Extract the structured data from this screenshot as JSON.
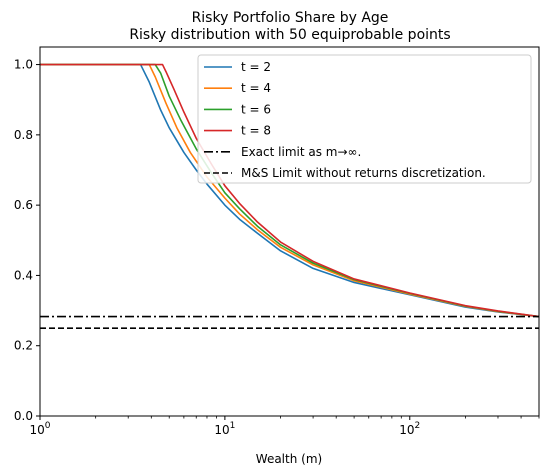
{
  "chart_data": {
    "type": "line",
    "title": "Risky Portfolio Share by Age",
    "subtitle": "Risky distribution with 50 equiprobable points",
    "xlabel": "Wealth (m)",
    "ylabel": "",
    "xscale": "log",
    "xlim": [
      1,
      500
    ],
    "ylim": [
      0,
      1.05
    ],
    "grid": false,
    "legend_position": "top-right",
    "x_ticks": [
      {
        "value": 1,
        "base": "10",
        "exp": "0"
      },
      {
        "value": 10,
        "base": "10",
        "exp": "1"
      },
      {
        "value": 100,
        "base": "10",
        "exp": "2"
      }
    ],
    "y_ticks": [
      {
        "value": 0.0,
        "label": "0.0"
      },
      {
        "value": 0.2,
        "label": "0.2"
      },
      {
        "value": 0.4,
        "label": "0.4"
      },
      {
        "value": 0.6,
        "label": "0.6"
      },
      {
        "value": 0.8,
        "label": "0.8"
      },
      {
        "value": 1.0,
        "label": "1.0"
      }
    ],
    "series": [
      {
        "name": "t = 2",
        "color": "#1f77b4",
        "dash": "solid",
        "x": [
          1,
          3.5,
          3.9,
          4.5,
          5,
          6,
          7,
          8,
          10,
          12,
          15,
          20,
          30,
          50,
          100,
          200,
          300,
          500
        ],
        "y": [
          1.0,
          1.0,
          0.95,
          0.87,
          0.82,
          0.75,
          0.7,
          0.66,
          0.6,
          0.56,
          0.52,
          0.47,
          0.42,
          0.38,
          0.345,
          0.31,
          0.296,
          0.283
        ]
      },
      {
        "name": "t = 4",
        "color": "#ff7f0e",
        "dash": "solid",
        "x": [
          1,
          3.9,
          4.2,
          4.8,
          5.5,
          6.5,
          8,
          10,
          12,
          15,
          20,
          30,
          50,
          100,
          200,
          300,
          500
        ],
        "y": [
          1.0,
          1.0,
          0.965,
          0.89,
          0.82,
          0.75,
          0.68,
          0.62,
          0.575,
          0.53,
          0.48,
          0.43,
          0.385,
          0.347,
          0.312,
          0.297,
          0.283
        ]
      },
      {
        "name": "t = 6",
        "color": "#2ca02c",
        "dash": "solid",
        "x": [
          1,
          4.2,
          4.5,
          5,
          5.8,
          7,
          8.5,
          10,
          12,
          15,
          20,
          30,
          50,
          100,
          200,
          300,
          500
        ],
        "y": [
          1.0,
          1.0,
          0.975,
          0.91,
          0.84,
          0.76,
          0.69,
          0.635,
          0.59,
          0.54,
          0.487,
          0.435,
          0.388,
          0.349,
          0.313,
          0.298,
          0.283
        ]
      },
      {
        "name": "t = 8",
        "color": "#d62728",
        "dash": "solid",
        "x": [
          1,
          4.6,
          4.8,
          5.3,
          6,
          7,
          8.5,
          10,
          12,
          15,
          20,
          30,
          50,
          100,
          200,
          300,
          500
        ],
        "y": [
          1.0,
          1.0,
          0.98,
          0.93,
          0.865,
          0.79,
          0.715,
          0.655,
          0.605,
          0.552,
          0.495,
          0.44,
          0.39,
          0.35,
          0.314,
          0.299,
          0.283
        ]
      },
      {
        "name": "Exact limit as m→∞.",
        "color": "#000000",
        "dash": "dashdot",
        "x": [
          1,
          500
        ],
        "y": [
          0.283,
          0.283
        ]
      },
      {
        "name": "M&S Limit without returns discretization.",
        "color": "#000000",
        "dash": "dashed",
        "x": [
          1,
          500
        ],
        "y": [
          0.25,
          0.25
        ]
      }
    ]
  }
}
